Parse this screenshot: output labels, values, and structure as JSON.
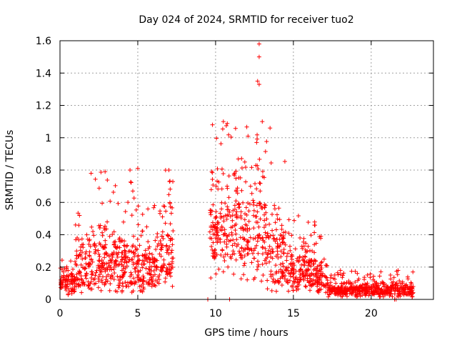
{
  "chart_data": {
    "type": "scatter",
    "title": "Day 024 of 2024, SRMTID for receiver tuo2",
    "xlabel": "GPS time / hours",
    "ylabel": "SRMTID / TECUs",
    "xlim": [
      0,
      24
    ],
    "ylim": [
      0,
      1.6
    ],
    "xticks": [
      0,
      5,
      10,
      15,
      20
    ],
    "yticks": [
      0,
      0.2,
      0.4,
      0.6,
      0.8,
      1,
      1.2,
      1.4,
      1.6
    ],
    "xtick_labels": [
      "0",
      "5",
      "10",
      "15",
      "20"
    ],
    "ytick_labels": [
      "0",
      "0.2",
      "0.4",
      "0.6",
      "0.8",
      "1",
      "1.2",
      "1.4",
      "1.6"
    ],
    "grid": true,
    "marker": "+",
    "color": "#ff0000",
    "series": [
      {
        "name": "SRMTID",
        "segments": [
          {
            "t_start": 0.0,
            "t_end": 1.0,
            "base": 0.05,
            "peak": 0.15,
            "max": 0.25
          },
          {
            "t_start": 1.0,
            "t_end": 2.0,
            "base": 0.08,
            "peak": 0.3,
            "max": 0.55
          },
          {
            "t_start": 2.0,
            "t_end": 3.5,
            "base": 0.1,
            "peak": 0.35,
            "max": 0.79
          },
          {
            "t_start": 3.5,
            "t_end": 5.0,
            "base": 0.08,
            "peak": 0.3,
            "max": 0.78
          },
          {
            "t_start": 5.0,
            "t_end": 6.2,
            "base": 0.08,
            "peak": 0.28,
            "max": 0.6
          },
          {
            "t_start": 6.2,
            "t_end": 7.3,
            "base": 0.15,
            "peak": 0.42,
            "max": 0.8
          },
          {
            "t_start": 9.6,
            "t_end": 11.2,
            "base": 0.25,
            "peak": 0.55,
            "max": 1.1
          },
          {
            "t_start": 11.2,
            "t_end": 13.3,
            "base": 0.2,
            "peak": 0.6,
            "max": 1.12
          },
          {
            "t_start": 13.3,
            "t_end": 14.5,
            "base": 0.1,
            "peak": 0.4,
            "max": 0.95
          },
          {
            "t_start": 14.5,
            "t_end": 16.5,
            "base": 0.1,
            "peak": 0.25,
            "max": 0.58
          },
          {
            "t_start": 16.5,
            "t_end": 17.2,
            "base": 0.08,
            "peak": 0.18,
            "max": 0.4
          },
          {
            "t_start": 17.2,
            "t_end": 22.7,
            "base": 0.03,
            "peak": 0.08,
            "max": 0.18
          }
        ],
        "outliers": [
          {
            "x": 12.8,
            "y": 1.58
          },
          {
            "x": 12.8,
            "y": 1.5
          },
          {
            "x": 12.7,
            "y": 1.35
          },
          {
            "x": 12.8,
            "y": 1.33
          },
          {
            "x": 2.0,
            "y": 0.78
          },
          {
            "x": 2.9,
            "y": 0.79
          },
          {
            "x": 4.5,
            "y": 0.8
          },
          {
            "x": 5.0,
            "y": 0.81
          },
          {
            "x": 7.0,
            "y": 0.8
          },
          {
            "x": 9.8,
            "y": 1.08
          },
          {
            "x": 10.5,
            "y": 1.1
          },
          {
            "x": 13.0,
            "y": 1.1
          },
          {
            "x": 13.5,
            "y": 1.06
          },
          {
            "x": 9.5,
            "y": 0.0
          },
          {
            "x": 10.9,
            "y": 0.0
          },
          {
            "x": 21.5,
            "y": 0.0
          },
          {
            "x": 21.6,
            "y": 0.0
          }
        ]
      }
    ]
  }
}
